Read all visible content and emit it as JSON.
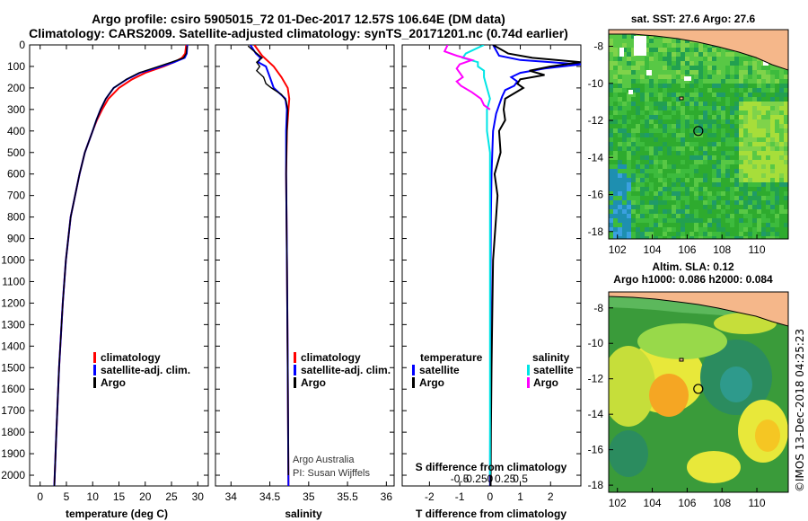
{
  "title_line1": "Argo profile: csiro 5905015_72 01-Dec-2017 12.57S 106.64E (DM data)",
  "title_line2": "Climatology: CARS2009. Satellite-adjusted climatology: synTS_20171201.nc (0.74d earlier)",
  "colors": {
    "climatology": "#ff0000",
    "satellite": "#0000ff",
    "argo": "#000000",
    "sal_satellite": "#00e5e5",
    "sal_argo": "#ff00ff"
  },
  "depth_axis": {
    "ticks": [
      0,
      100,
      200,
      300,
      400,
      500,
      600,
      700,
      800,
      900,
      1000,
      1100,
      1200,
      1300,
      1400,
      1500,
      1600,
      1700,
      1800,
      1900,
      2000
    ],
    "range": [
      0,
      2050
    ]
  },
  "chart_data": [
    {
      "type": "line",
      "panel": "temperature",
      "xlabel": "temperature (deg C)",
      "xlim": [
        -2,
        32
      ],
      "xticks": [
        0,
        5,
        10,
        15,
        20,
        25,
        30
      ],
      "ylim": [
        2050,
        0
      ],
      "legend": [
        "climatology",
        "satellite-adj. clim.",
        "Argo"
      ],
      "series": [
        {
          "name": "climatology",
          "depth": [
            0,
            40,
            60,
            80,
            100,
            130,
            160,
            200,
            250,
            300,
            350,
            400,
            500,
            600,
            800,
            1000,
            1200,
            1500,
            1800,
            2050
          ],
          "values": [
            27.8,
            27.6,
            27.0,
            25.5,
            23.5,
            20.0,
            17.5,
            15.0,
            13.0,
            11.8,
            10.8,
            10.0,
            8.5,
            7.5,
            5.8,
            4.9,
            4.3,
            3.6,
            3.1,
            2.7
          ]
        },
        {
          "name": "satellite-adj. clim.",
          "depth": [
            0,
            40,
            60,
            80,
            100,
            130,
            160,
            200,
            250,
            300,
            350,
            400,
            500,
            600,
            800,
            1000,
            1200,
            1500,
            1800,
            2050
          ],
          "values": [
            28.0,
            27.9,
            27.5,
            25.5,
            23.0,
            19.0,
            16.5,
            14.0,
            12.5,
            11.5,
            10.7,
            10.0,
            8.5,
            7.5,
            5.8,
            4.9,
            4.3,
            3.6,
            3.1,
            2.7
          ]
        },
        {
          "name": "Argo",
          "depth": [
            5,
            40,
            60,
            80,
            100,
            130,
            160,
            200,
            250,
            300,
            350,
            400,
            500,
            600,
            800,
            1000,
            1200,
            1500,
            1800,
            2050
          ],
          "values": [
            28.0,
            27.8,
            27.3,
            25.0,
            22.5,
            18.8,
            16.4,
            14.0,
            12.5,
            11.5,
            10.7,
            10.0,
            8.5,
            7.5,
            5.8,
            4.9,
            4.3,
            3.6,
            3.1,
            2.7
          ]
        }
      ]
    },
    {
      "type": "line",
      "panel": "salinity",
      "xlabel": "salinity",
      "xlim": [
        33.8,
        36.1
      ],
      "xticks": [
        34,
        34.5,
        35,
        35.5,
        36
      ],
      "ylim": [
        2050,
        0
      ],
      "legend": [
        "climatology",
        "satellite-adj. clim.",
        "Argo"
      ],
      "annotations": [
        "Argo Australia",
        "PI: Susan Wijffels"
      ],
      "series": [
        {
          "name": "climatology",
          "depth": [
            0,
            50,
            100,
            150,
            200,
            250,
            300,
            400,
            600,
            1000,
            1500,
            2050
          ],
          "values": [
            34.3,
            34.4,
            34.55,
            34.65,
            34.73,
            34.75,
            34.74,
            34.72,
            34.71,
            34.72,
            34.73,
            34.74
          ]
        },
        {
          "name": "satellite-adj. clim.",
          "depth": [
            0,
            40,
            60,
            80,
            100,
            150,
            200,
            250,
            300,
            400,
            600,
            1000,
            1500,
            2050
          ],
          "values": [
            34.25,
            34.32,
            34.38,
            34.35,
            34.45,
            34.5,
            34.55,
            34.7,
            34.72,
            34.71,
            34.71,
            34.72,
            34.73,
            34.74
          ]
        },
        {
          "name": "Argo",
          "depth": [
            5,
            30,
            60,
            80,
            100,
            120,
            150,
            180,
            200,
            230,
            260,
            300,
            400,
            600,
            1000,
            1500,
            2000
          ],
          "values": [
            34.22,
            34.3,
            34.4,
            34.33,
            34.37,
            34.33,
            34.42,
            34.45,
            34.52,
            34.65,
            34.71,
            34.73,
            34.72,
            34.71,
            34.72,
            34.73,
            34.74
          ]
        }
      ]
    },
    {
      "type": "line",
      "panel": "difference",
      "xlabel": "T difference from climatology",
      "xlabel2": "S difference from climatology",
      "xlim": [
        -2.9,
        3.0
      ],
      "xticks": [
        -2,
        -1,
        0,
        1,
        2
      ],
      "xticks2": [
        -0.5,
        -0.25,
        0,
        0.25,
        0.5
      ],
      "xticklabels2": [
        "-0.5",
        "-0.25",
        "0",
        "0.25",
        "0.5"
      ],
      "ylim": [
        2050,
        0
      ],
      "legend_left_title": "temperature",
      "legend_right_title": "salinity",
      "legend": [
        "satellite",
        "Argo",
        "satellite",
        "Argo"
      ],
      "series": [
        {
          "name": "temperature satellite",
          "depth": [
            0,
            50,
            70,
            90,
            110,
            130,
            150,
            170,
            190,
            210,
            240,
            280,
            320,
            400,
            600,
            800,
            1000,
            1500,
            2050
          ],
          "values": [
            0.1,
            0.3,
            1.0,
            3.0,
            1.8,
            1.0,
            0.7,
            0.9,
            0.8,
            0.5,
            0.4,
            0.3,
            0.2,
            0.1,
            0.05,
            0.03,
            0.02,
            0.01,
            0.0
          ]
        },
        {
          "name": "temperature Argo",
          "depth": [
            0,
            40,
            60,
            80,
            100,
            120,
            140,
            160,
            180,
            200,
            250,
            300,
            350,
            400,
            500,
            600,
            700,
            800,
            1000,
            1200,
            1500,
            1800,
            2050
          ],
          "values": [
            0.1,
            0.6,
            1.4,
            3.0,
            2.0,
            1.3,
            1.8,
            1.0,
            0.9,
            1.1,
            0.5,
            0.45,
            0.5,
            0.3,
            0.35,
            0.15,
            0.25,
            0.2,
            0.1,
            0.08,
            0.05,
            0.03,
            0.02
          ]
        },
        {
          "name": "salinity satellite",
          "depth": [
            0,
            40,
            60,
            80,
            100,
            120,
            150,
            200,
            250,
            300,
            400,
            500,
            700,
            1000,
            1500,
            2000
          ],
          "values": [
            -0.1,
            -0.4,
            -0.45,
            -0.2,
            -0.2,
            -0.1,
            -0.1,
            -0.05,
            0.0,
            -0.05,
            -0.05,
            0.0,
            0.0,
            0.0,
            0.0,
            0.0
          ]
        },
        {
          "name": "salinity Argo",
          "depth": [
            0,
            30,
            50,
            70,
            90,
            110,
            130,
            150,
            170,
            190,
            220,
            250,
            280,
            300
          ],
          "values": [
            -0.7,
            -0.75,
            -0.55,
            -0.3,
            -0.5,
            -0.55,
            -0.5,
            -0.45,
            -0.55,
            -0.48,
            -0.3,
            -0.15,
            -0.1,
            0.0
          ]
        }
      ]
    },
    {
      "type": "heatmap",
      "panel": "sst_map",
      "title": "sat. SST: 27.6 Argo: 27.6",
      "xlim": [
        101.5,
        111.8
      ],
      "ylim": [
        -18.4,
        -7.1
      ],
      "xticks": [
        102,
        104,
        106,
        108,
        110
      ],
      "yticks": [
        -8,
        -10,
        -12,
        -14,
        -16,
        -18
      ],
      "argo_position": {
        "lon": 106.64,
        "lat": -12.57
      }
    },
    {
      "type": "heatmap",
      "panel": "altimetry_map",
      "title": "Altim. SLA: 0.12",
      "subtitle": "Argo h1000: 0.086 h2000: 0.084",
      "xlim": [
        101.5,
        111.8
      ],
      "ylim": [
        -18.4,
        -7.1
      ],
      "xticks": [
        102,
        104,
        106,
        108,
        110
      ],
      "yticks": [
        -8,
        -10,
        -12,
        -14,
        -16,
        -18
      ],
      "argo_position": {
        "lon": 106.64,
        "lat": -12.57
      }
    }
  ],
  "credit": "©IMOS 13-Dec-2018 04:25:23"
}
